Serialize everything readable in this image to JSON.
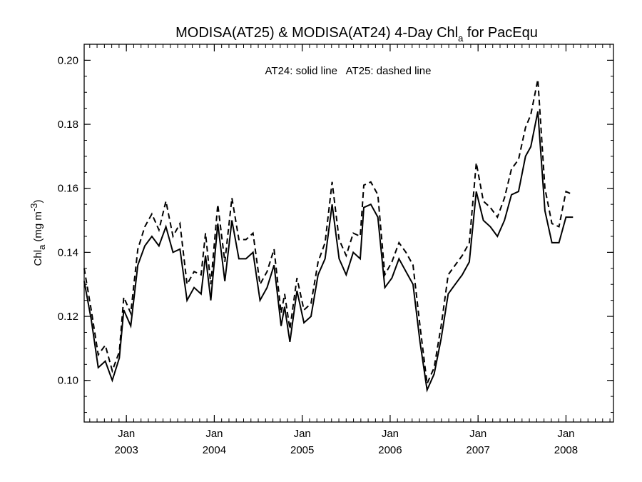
{
  "chart_data": {
    "type": "line",
    "title_main": "MODISA(AT25) & MODISA(AT24) 4-Day Chl",
    "title_sub": "a",
    "title_tail": " for PacEqu",
    "ylabel_main": "Chl",
    "ylabel_sub": "a",
    "ylabel_unit": " (mg m",
    "ylabel_sup": "-3",
    "ylabel_close": ")",
    "annotation": "AT24: solid line   AT25: dashed line",
    "xlim": [
      2002.52,
      2008.54
    ],
    "ylim": [
      0.087,
      0.205
    ],
    "y_ticks": [
      0.1,
      0.12,
      0.14,
      0.16,
      0.18,
      0.2
    ],
    "y_tick_labels": [
      "0.10",
      "0.12",
      "0.14",
      "0.16",
      "0.18",
      "0.20"
    ],
    "x_ticks": [
      {
        "x": 2003.0,
        "month": "Jan",
        "year": "2003"
      },
      {
        "x": 2004.0,
        "month": "Jan",
        "year": "2004"
      },
      {
        "x": 2005.0,
        "month": "Jan",
        "year": "2005"
      },
      {
        "x": 2006.0,
        "month": "Jan",
        "year": "2006"
      },
      {
        "x": 2007.0,
        "month": "Jan",
        "year": "2007"
      },
      {
        "x": 2008.0,
        "month": "Jan",
        "year": "2008"
      }
    ],
    "series": [
      {
        "name": "AT24",
        "style": "solid",
        "points": [
          [
            2002.52,
            0.131
          ],
          [
            2002.6,
            0.119
          ],
          [
            2002.68,
            0.104
          ],
          [
            2002.76,
            0.106
          ],
          [
            2002.84,
            0.1
          ],
          [
            2002.92,
            0.107
          ],
          [
            2002.97,
            0.122
          ],
          [
            2003.05,
            0.117
          ],
          [
            2003.13,
            0.136
          ],
          [
            2003.21,
            0.142
          ],
          [
            2003.29,
            0.145
          ],
          [
            2003.37,
            0.142
          ],
          [
            2003.45,
            0.148
          ],
          [
            2003.53,
            0.14
          ],
          [
            2003.61,
            0.141
          ],
          [
            2003.69,
            0.125
          ],
          [
            2003.77,
            0.129
          ],
          [
            2003.85,
            0.127
          ],
          [
            2003.9,
            0.139
          ],
          [
            2003.96,
            0.125
          ],
          [
            2004.04,
            0.149
          ],
          [
            2004.12,
            0.131
          ],
          [
            2004.2,
            0.15
          ],
          [
            2004.28,
            0.138
          ],
          [
            2004.36,
            0.138
          ],
          [
            2004.44,
            0.14
          ],
          [
            2004.52,
            0.125
          ],
          [
            2004.6,
            0.129
          ],
          [
            2004.68,
            0.136
          ],
          [
            2004.76,
            0.117
          ],
          [
            2004.8,
            0.123
          ],
          [
            2004.86,
            0.112
          ],
          [
            2004.94,
            0.128
          ],
          [
            2005.02,
            0.118
          ],
          [
            2005.1,
            0.12
          ],
          [
            2005.18,
            0.133
          ],
          [
            2005.26,
            0.138
          ],
          [
            2005.34,
            0.155
          ],
          [
            2005.42,
            0.138
          ],
          [
            2005.5,
            0.133
          ],
          [
            2005.58,
            0.14
          ],
          [
            2005.66,
            0.138
          ],
          [
            2005.7,
            0.154
          ],
          [
            2005.78,
            0.155
          ],
          [
            2005.86,
            0.151
          ],
          [
            2005.94,
            0.129
          ],
          [
            2006.02,
            0.132
          ],
          [
            2006.1,
            0.138
          ],
          [
            2006.18,
            0.134
          ],
          [
            2006.26,
            0.13
          ],
          [
            2006.34,
            0.112
          ],
          [
            2006.42,
            0.097
          ],
          [
            2006.5,
            0.102
          ],
          [
            2006.58,
            0.113
          ],
          [
            2006.66,
            0.127
          ],
          [
            2006.74,
            0.13
          ],
          [
            2006.82,
            0.133
          ],
          [
            2006.9,
            0.137
          ],
          [
            2006.98,
            0.159
          ],
          [
            2007.06,
            0.15
          ],
          [
            2007.14,
            0.148
          ],
          [
            2007.22,
            0.145
          ],
          [
            2007.3,
            0.15
          ],
          [
            2007.38,
            0.158
          ],
          [
            2007.46,
            0.159
          ],
          [
            2007.54,
            0.17
          ],
          [
            2007.6,
            0.173
          ],
          [
            2007.68,
            0.184
          ],
          [
            2007.76,
            0.153
          ],
          [
            2007.84,
            0.143
          ],
          [
            2007.92,
            0.143
          ],
          [
            2008.0,
            0.151
          ],
          [
            2008.08,
            0.151
          ]
        ]
      },
      {
        "name": "AT25",
        "style": "dashed",
        "points": [
          [
            2002.52,
            0.135
          ],
          [
            2002.6,
            0.122
          ],
          [
            2002.68,
            0.108
          ],
          [
            2002.76,
            0.111
          ],
          [
            2002.84,
            0.103
          ],
          [
            2002.92,
            0.109
          ],
          [
            2002.97,
            0.126
          ],
          [
            2003.05,
            0.121
          ],
          [
            2003.13,
            0.141
          ],
          [
            2003.21,
            0.148
          ],
          [
            2003.29,
            0.152
          ],
          [
            2003.37,
            0.147
          ],
          [
            2003.45,
            0.156
          ],
          [
            2003.53,
            0.145
          ],
          [
            2003.61,
            0.149
          ],
          [
            2003.69,
            0.13
          ],
          [
            2003.77,
            0.134
          ],
          [
            2003.85,
            0.133
          ],
          [
            2003.9,
            0.146
          ],
          [
            2003.96,
            0.13
          ],
          [
            2004.04,
            0.155
          ],
          [
            2004.12,
            0.137
          ],
          [
            2004.2,
            0.157
          ],
          [
            2004.28,
            0.144
          ],
          [
            2004.36,
            0.144
          ],
          [
            2004.44,
            0.146
          ],
          [
            2004.52,
            0.13
          ],
          [
            2004.6,
            0.134
          ],
          [
            2004.68,
            0.141
          ],
          [
            2004.76,
            0.121
          ],
          [
            2004.8,
            0.127
          ],
          [
            2004.86,
            0.116
          ],
          [
            2004.94,
            0.132
          ],
          [
            2005.02,
            0.122
          ],
          [
            2005.1,
            0.124
          ],
          [
            2005.18,
            0.137
          ],
          [
            2005.26,
            0.143
          ],
          [
            2005.34,
            0.162
          ],
          [
            2005.42,
            0.144
          ],
          [
            2005.5,
            0.139
          ],
          [
            2005.58,
            0.146
          ],
          [
            2005.66,
            0.145
          ],
          [
            2005.7,
            0.161
          ],
          [
            2005.78,
            0.162
          ],
          [
            2005.86,
            0.158
          ],
          [
            2005.94,
            0.133
          ],
          [
            2006.02,
            0.137
          ],
          [
            2006.1,
            0.143
          ],
          [
            2006.18,
            0.14
          ],
          [
            2006.26,
            0.136
          ],
          [
            2006.34,
            0.117
          ],
          [
            2006.42,
            0.099
          ],
          [
            2006.5,
            0.104
          ],
          [
            2006.58,
            0.117
          ],
          [
            2006.66,
            0.133
          ],
          [
            2006.74,
            0.136
          ],
          [
            2006.82,
            0.139
          ],
          [
            2006.9,
            0.143
          ],
          [
            2006.98,
            0.168
          ],
          [
            2007.06,
            0.156
          ],
          [
            2007.14,
            0.154
          ],
          [
            2007.22,
            0.151
          ],
          [
            2007.3,
            0.157
          ],
          [
            2007.38,
            0.166
          ],
          [
            2007.46,
            0.169
          ],
          [
            2007.54,
            0.179
          ],
          [
            2007.6,
            0.183
          ],
          [
            2007.68,
            0.194
          ],
          [
            2007.76,
            0.16
          ],
          [
            2007.84,
            0.149
          ],
          [
            2007.92,
            0.148
          ],
          [
            2008.0,
            0.159
          ],
          [
            2008.08,
            0.158
          ]
        ]
      }
    ]
  }
}
